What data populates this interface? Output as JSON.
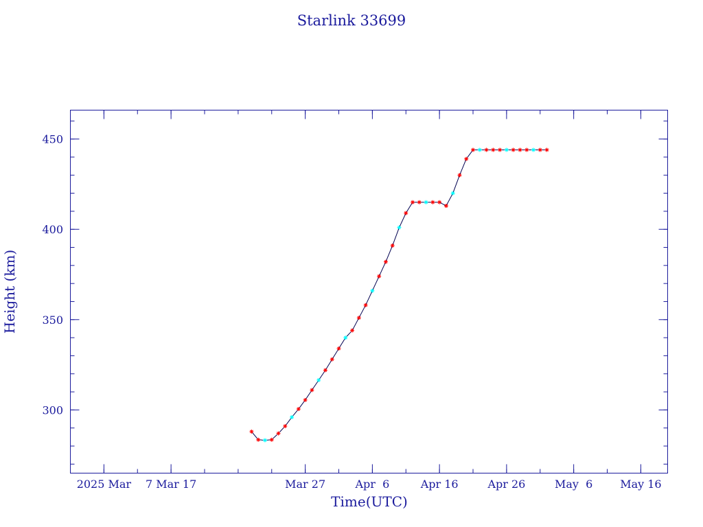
{
  "chart_data": {
    "type": "line",
    "title": "Starlink 33699",
    "xlabel": "Time(UTC)",
    "ylabel": "Height (km)",
    "x_tick_labels": [
      {
        "date": "2025-02-25",
        "label": "2025 Mar"
      },
      {
        "date": "2025-03-07",
        "label": "7 Mar 17"
      },
      {
        "date": "2025-03-27",
        "label": "Mar 27"
      },
      {
        "date": "2025-04-06",
        "label": "Apr  6"
      },
      {
        "date": "2025-04-16",
        "label": "Apr 16"
      },
      {
        "date": "2025-04-26",
        "label": "Apr 26"
      },
      {
        "date": "2025-05-06",
        "label": "May  6"
      },
      {
        "date": "2025-05-16",
        "label": "May 16"
      }
    ],
    "xlim": [
      "2025-02-20",
      "2025-05-20"
    ],
    "y_ticks": [
      300,
      350,
      400,
      450
    ],
    "ylim": [
      265,
      466
    ],
    "grid": false,
    "colors": {
      "axes": "#1a1a9c",
      "line": "#000050",
      "point": "#ff0000",
      "point_alt": "#00ffff"
    },
    "series": [
      {
        "points": [
          [
            "2025-03-19",
            288
          ],
          [
            "2025-03-20",
            283.5
          ],
          [
            "2025-03-21",
            283.2
          ],
          [
            "2025-03-22",
            283.5
          ],
          [
            "2025-03-23",
            287
          ],
          [
            "2025-03-24",
            291
          ],
          [
            "2025-03-25",
            296
          ],
          [
            "2025-03-26",
            300.5
          ],
          [
            "2025-03-27",
            305.5
          ],
          [
            "2025-03-28",
            311
          ],
          [
            "2025-03-29",
            316.5
          ],
          [
            "2025-03-30",
            322
          ],
          [
            "2025-03-31",
            328
          ],
          [
            "2025-04-01",
            334
          ],
          [
            "2025-04-02",
            340
          ],
          [
            "2025-04-03",
            344
          ],
          [
            "2025-04-04",
            351
          ],
          [
            "2025-04-05",
            358
          ],
          [
            "2025-04-06",
            366
          ],
          [
            "2025-04-07",
            374
          ],
          [
            "2025-04-08",
            382
          ],
          [
            "2025-04-09",
            391
          ],
          [
            "2025-04-10",
            401
          ],
          [
            "2025-04-11",
            409
          ],
          [
            "2025-04-12",
            415
          ],
          [
            "2025-04-13",
            415
          ],
          [
            "2025-04-14",
            415
          ],
          [
            "2025-04-15",
            415
          ],
          [
            "2025-04-16",
            415
          ],
          [
            "2025-04-17",
            413
          ],
          [
            "2025-04-18",
            420
          ],
          [
            "2025-04-19",
            430
          ],
          [
            "2025-04-20",
            439
          ],
          [
            "2025-04-21",
            444
          ],
          [
            "2025-04-22",
            444
          ],
          [
            "2025-04-23",
            444
          ],
          [
            "2025-04-24",
            444
          ],
          [
            "2025-04-25",
            444
          ],
          [
            "2025-04-26",
            444
          ],
          [
            "2025-04-27",
            444
          ],
          [
            "2025-04-28",
            444
          ],
          [
            "2025-04-29",
            444
          ],
          [
            "2025-04-30",
            444
          ],
          [
            "2025-05-01",
            444
          ],
          [
            "2025-05-02",
            444
          ]
        ]
      }
    ]
  }
}
